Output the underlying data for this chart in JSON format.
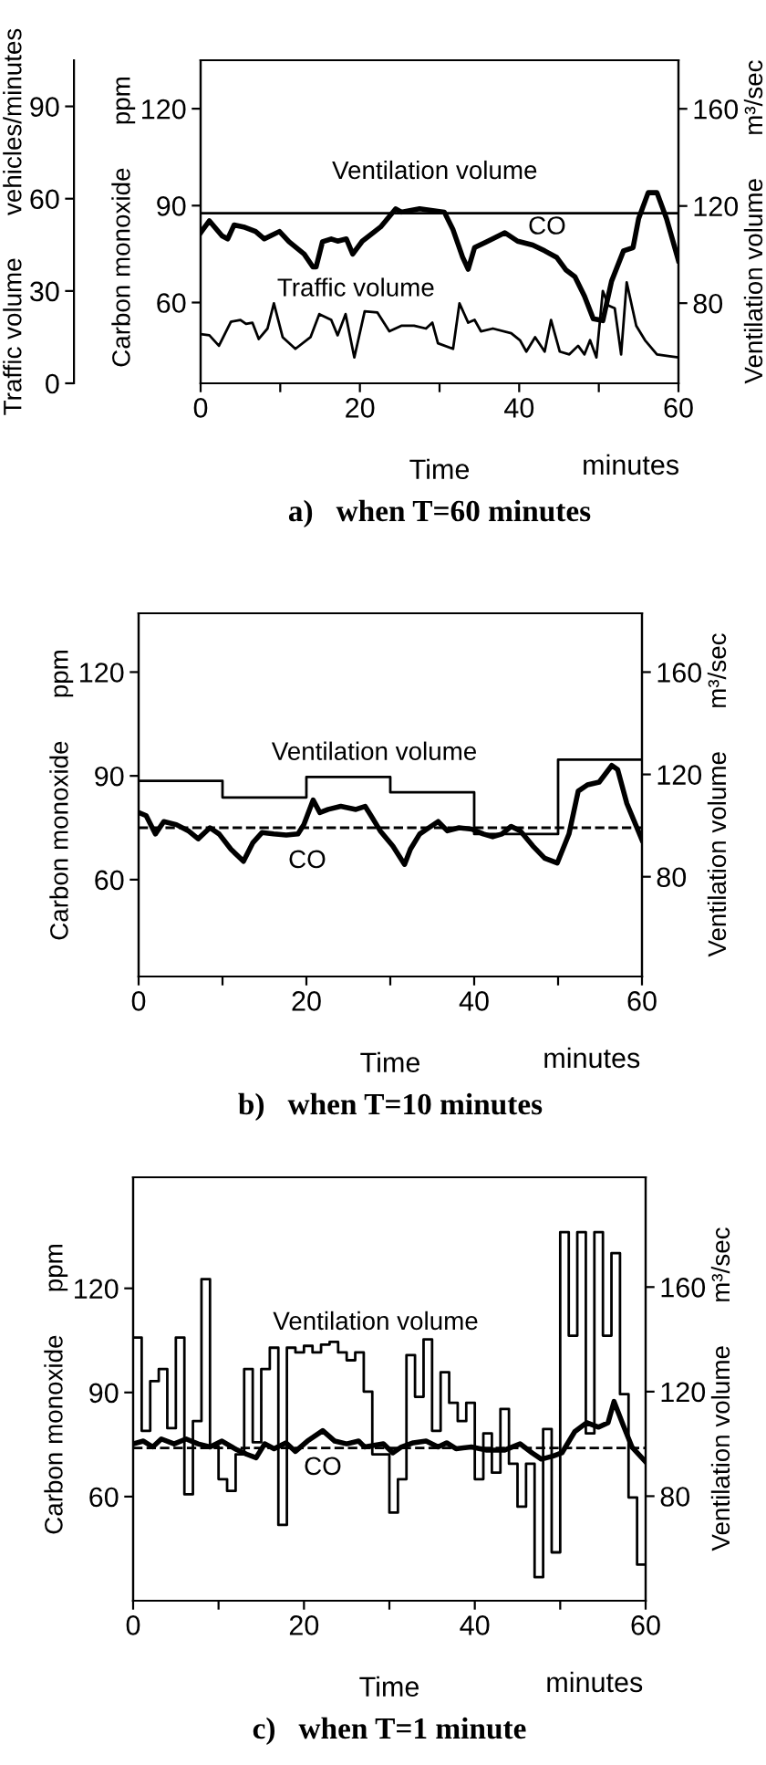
{
  "chart_data": [
    {
      "type": "line",
      "title": "a)   when T=60 minutes",
      "xlabel": "Time",
      "ylabel": "Carbon monoxide      ppm",
      "y2label": "Ventilation volume      m³/sec",
      "y3label": "Traffic volume      vehicles/minutes",
      "xlim": [
        0,
        60
      ],
      "xticks": [
        0,
        {
          "value": 10,
          "label": null
        },
        20,
        {
          "value": 30,
          "label": null
        },
        40,
        {
          "value": 50,
          "label": null
        },
        60
      ],
      "ylim": [
        35,
        135
      ],
      "yticks": [
        60,
        90,
        120
      ],
      "y2lim": [
        47,
        180
      ],
      "y2ticks": [
        80,
        120,
        160
      ],
      "y3lim": [
        0,
        105
      ],
      "y3ticks": [
        0,
        30,
        60,
        90
      ],
      "annotations": [
        "minutes"
      ],
      "series": [
        {
          "name": "Ventilation volume",
          "axis": "y2",
          "color": "#000000",
          "x": [
            0,
            60
          ],
          "values": [
            117,
            117
          ]
        },
        {
          "name": "CO",
          "axis": "y",
          "color": "#000000",
          "x": [
            0,
            1.1,
            2.7,
            3.4,
            4.2,
            5.4,
            6.9,
            8,
            9.9,
            11.1,
            13,
            14.1,
            14.5,
            15.3,
            16.4,
            17.2,
            18.3,
            19.1,
            20.3,
            22.6,
            24.5,
            25.2,
            27.5,
            30.6,
            31.7,
            32.9,
            33.6,
            34.4,
            35.9,
            38.2,
            39.8,
            41.7,
            43.2,
            44.7,
            45.9,
            47,
            48.2,
            49.3,
            50.5,
            51.6,
            53.1,
            54.3,
            55,
            56.2,
            57.3,
            58.5,
            60
          ],
          "values": [
            81.6,
            85.3,
            80.6,
            79.7,
            84,
            83.4,
            82,
            79.7,
            82,
            78.8,
            75,
            71,
            71,
            78.8,
            79.7,
            79,
            79.7,
            75,
            79,
            83.4,
            89,
            88,
            89,
            88,
            82.5,
            74,
            70.3,
            77,
            78.8,
            81.6,
            79,
            77.8,
            76,
            74,
            70,
            68,
            62,
            55,
            54.4,
            66.6,
            76,
            77,
            86,
            94,
            94,
            86,
            73
          ]
        },
        {
          "name": "Traffic volume",
          "axis": "y3",
          "color": "#000000",
          "x": [
            0,
            1.1,
            2.3,
            3.8,
            5,
            5.7,
            6.5,
            7.3,
            8.4,
            9.2,
            10.3,
            11.9,
            13.8,
            14.9,
            16.4,
            17.2,
            18.2,
            19.3,
            20.6,
            22.2,
            23.7,
            25.2,
            26.8,
            28.3,
            29.1,
            29.8,
            31.7,
            32.5,
            33.6,
            34.4,
            35.2,
            36.7,
            39,
            40.1,
            40.9,
            42,
            43.2,
            44,
            45.1,
            46.3,
            47.4,
            48.2,
            48.9,
            49.7,
            50.5,
            51.2,
            52,
            52.8,
            53.5,
            54.7,
            55.8,
            57.3,
            58.9,
            60
          ],
          "values": [
            16,
            15.6,
            12.2,
            20,
            20.6,
            19.3,
            19.7,
            14.4,
            17.8,
            26,
            15,
            11.2,
            15,
            22.5,
            20.6,
            15.6,
            22.5,
            8.4,
            23.4,
            23,
            16.9,
            18.7,
            18.7,
            17.8,
            19.7,
            13,
            11.2,
            26,
            19.7,
            20.6,
            16.9,
            17.8,
            16.3,
            14,
            10.3,
            15,
            10.3,
            20.6,
            10.3,
            9.4,
            12.2,
            9.4,
            14,
            8.4,
            30,
            25.3,
            24.4,
            9.4,
            32.8,
            18.7,
            14,
            9.4,
            8.8,
            8.4
          ]
        }
      ]
    },
    {
      "type": "line",
      "title": "b)   when T=10 minutes",
      "xlabel": "Time",
      "ylabel": "Carbon monoxide      ppm",
      "y2label": "Ventilation volume      m³/sec",
      "xlim": [
        0,
        60
      ],
      "xticks": [
        0,
        {
          "value": 10,
          "label": null
        },
        20,
        {
          "value": 30,
          "label": null
        },
        40,
        {
          "value": 50,
          "label": null
        },
        60
      ],
      "ylim": [
        32,
        137
      ],
      "yticks": [
        60,
        90,
        120
      ],
      "y2lim": [
        41,
        183
      ],
      "y2ticks": [
        80,
        120,
        160
      ],
      "ref_lines": [
        {
          "axis": "y",
          "value": 75,
          "line_style": "dashed",
          "color": "#000000"
        }
      ],
      "annotations": [
        "minutes"
      ],
      "series": [
        {
          "name": "Ventilation volume",
          "type": "step",
          "axis": "y2",
          "color": "#000000",
          "x": [
            0,
            10,
            20,
            30,
            40,
            50,
            60
          ],
          "values": [
            117.5,
            111,
            119,
            113,
            96.7,
            125.8,
            125.8
          ]
        },
        {
          "name": "CO",
          "axis": "y",
          "color": "#000000",
          "x": [
            0,
            0.9,
            2,
            3,
            4.5,
            6,
            7.1,
            8.5,
            9.6,
            11,
            12.5,
            13.6,
            14.7,
            16.1,
            17.6,
            19,
            19.7,
            20.8,
            21.6,
            22.6,
            24.1,
            25.9,
            27,
            27.7,
            28.8,
            30.3,
            31.7,
            32.4,
            33.5,
            34.6,
            35.7,
            36.8,
            38.2,
            39.7,
            41.1,
            42.2,
            43.3,
            44.4,
            45.5,
            47,
            48.4,
            49.9,
            51.3,
            52.4,
            53.5,
            54.9,
            56.4,
            57.1,
            58.2,
            60
          ],
          "values": [
            79.4,
            78.5,
            73.2,
            76.8,
            75.9,
            74,
            71.8,
            75,
            73.2,
            68.8,
            65.3,
            70.6,
            73.6,
            73.2,
            72.9,
            73.2,
            75.9,
            83,
            79.4,
            80.3,
            81.2,
            80.3,
            81.2,
            78.5,
            74.1,
            69.7,
            64.4,
            68.8,
            73.2,
            75,
            76.8,
            74.1,
            75,
            74.6,
            73.2,
            72.4,
            73.2,
            75.4,
            74.1,
            69.7,
            66.2,
            64.8,
            73.2,
            85.6,
            87.4,
            88.2,
            93,
            91.8,
            82,
            71.5
          ]
        }
      ]
    },
    {
      "type": "line",
      "title": "c)   when T=1 minute",
      "xlabel": "Time",
      "ylabel": "Carbon monoxide      ppm",
      "y2label": "Ventilation volume      m³/sec",
      "xlim": [
        0,
        60
      ],
      "xticks": [
        0,
        {
          "value": 10,
          "label": null
        },
        20,
        {
          "value": 30,
          "label": null
        },
        40,
        {
          "value": 50,
          "label": null
        },
        60
      ],
      "ylim": [
        30,
        152
      ],
      "yticks": [
        60,
        90,
        120
      ],
      "y2lim": [
        40,
        202
      ],
      "y2ticks": [
        80,
        120,
        160
      ],
      "ref_lines": [
        {
          "axis": "y",
          "value": 74,
          "line_style": "dashed",
          "color": "#000000"
        }
      ],
      "annotations": [
        "minutes"
      ],
      "series": [
        {
          "name": "Ventilation volume",
          "type": "step",
          "axis": "y2",
          "color": "#000000",
          "x": [
            0,
            1,
            2,
            3,
            4,
            5,
            6,
            7,
            8,
            9,
            10,
            11,
            12,
            13,
            14,
            15,
            16,
            17,
            18,
            19,
            20,
            21,
            22,
            23,
            24,
            25,
            26,
            27,
            28,
            29,
            30,
            31,
            32,
            33,
            34,
            35,
            36,
            37,
            38,
            39,
            40,
            41,
            42,
            43,
            44,
            45,
            46,
            47,
            48,
            49,
            50,
            51,
            52,
            53,
            54,
            55,
            56,
            57,
            58,
            59,
            60
          ],
          "values": [
            140.7,
            105,
            124,
            128.6,
            106,
            140.7,
            80.7,
            108.7,
            163,
            99,
            86.5,
            82,
            96,
            128.6,
            100.6,
            128.6,
            136.8,
            69,
            136.8,
            135,
            137.5,
            135,
            138,
            139,
            135,
            132,
            135,
            120,
            96,
            96,
            73.7,
            86.5,
            134,
            118,
            140,
            105,
            127.4,
            115.7,
            108.7,
            115.7,
            86.5,
            104,
            89,
            113.4,
            92.4,
            76,
            92.4,
            49,
            105.7,
            58.5,
            181,
            141.4,
            181,
            104,
            181,
            141.4,
            173,
            119,
            79.5,
            53.8,
            53.8
          ]
        },
        {
          "name": "CO",
          "axis": "y",
          "color": "#000000",
          "x": [
            0,
            1.2,
            2.3,
            3.3,
            4.8,
            6.2,
            7.6,
            9,
            10.4,
            11.9,
            13.3,
            14.4,
            15.4,
            16.5,
            17.9,
            19,
            20.4,
            22.2,
            23.6,
            25,
            26.4,
            27.1,
            29.3,
            30.4,
            31.4,
            32.8,
            34.3,
            35.7,
            36.7,
            37.8,
            39.6,
            41.4,
            43.5,
            45.3,
            46.7,
            47.8,
            49.2,
            50.2,
            51.7,
            53.1,
            54.5,
            55.6,
            56.3,
            57.4,
            58.4,
            60
          ],
          "values": [
            75.2,
            76,
            74.3,
            76.6,
            75.2,
            76.6,
            75.2,
            74.3,
            76,
            73.8,
            72.2,
            71.2,
            75.2,
            73.8,
            75.5,
            73,
            76,
            79,
            76,
            75.2,
            76,
            74.3,
            75.2,
            72.6,
            74.3,
            75.5,
            76,
            74.3,
            75.5,
            73.8,
            74.3,
            73.4,
            73.4,
            75.2,
            72.6,
            70.8,
            71.7,
            72.6,
            78.7,
            81.3,
            80,
            81.3,
            87.4,
            80.4,
            74.3,
            70
          ]
        }
      ]
    }
  ]
}
